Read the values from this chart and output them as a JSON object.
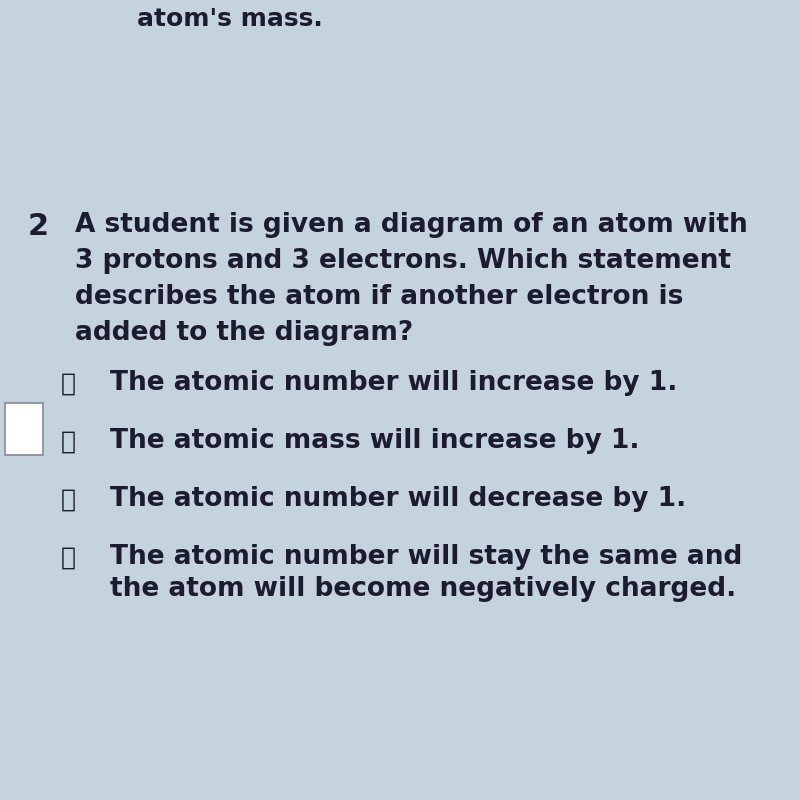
{
  "background_color_top": "#b8c8d8",
  "background_color_mid": "#c5d3df",
  "background_color_bot": "#bcc9d5",
  "top_text": "atom's mass.",
  "question_number": "2",
  "question_text_lines": [
    "A student is given a diagram of an atom with",
    "3 protons and 3 electrons. Which statement",
    "describes the atom if another electron is",
    "added to the diagram?"
  ],
  "options": [
    {
      "letter": "Ⓕ",
      "text_lines": [
        "The atomic number will increase by 1."
      ]
    },
    {
      "letter": "Ⓖ",
      "text_lines": [
        "The atomic mass will increase by 1."
      ]
    },
    {
      "letter": "Ⓗ",
      "text_lines": [
        "The atomic number will decrease by 1."
      ]
    },
    {
      "letter": "Ⓘ",
      "text_lines": [
        "The atomic number will stay the same and",
        "the atom will become negatively charged."
      ]
    }
  ],
  "text_color": "#1c1c2e",
  "font_size_question": 19,
  "font_size_options": 19,
  "font_size_number": 22,
  "font_size_top": 18,
  "font_size_circle": 18
}
